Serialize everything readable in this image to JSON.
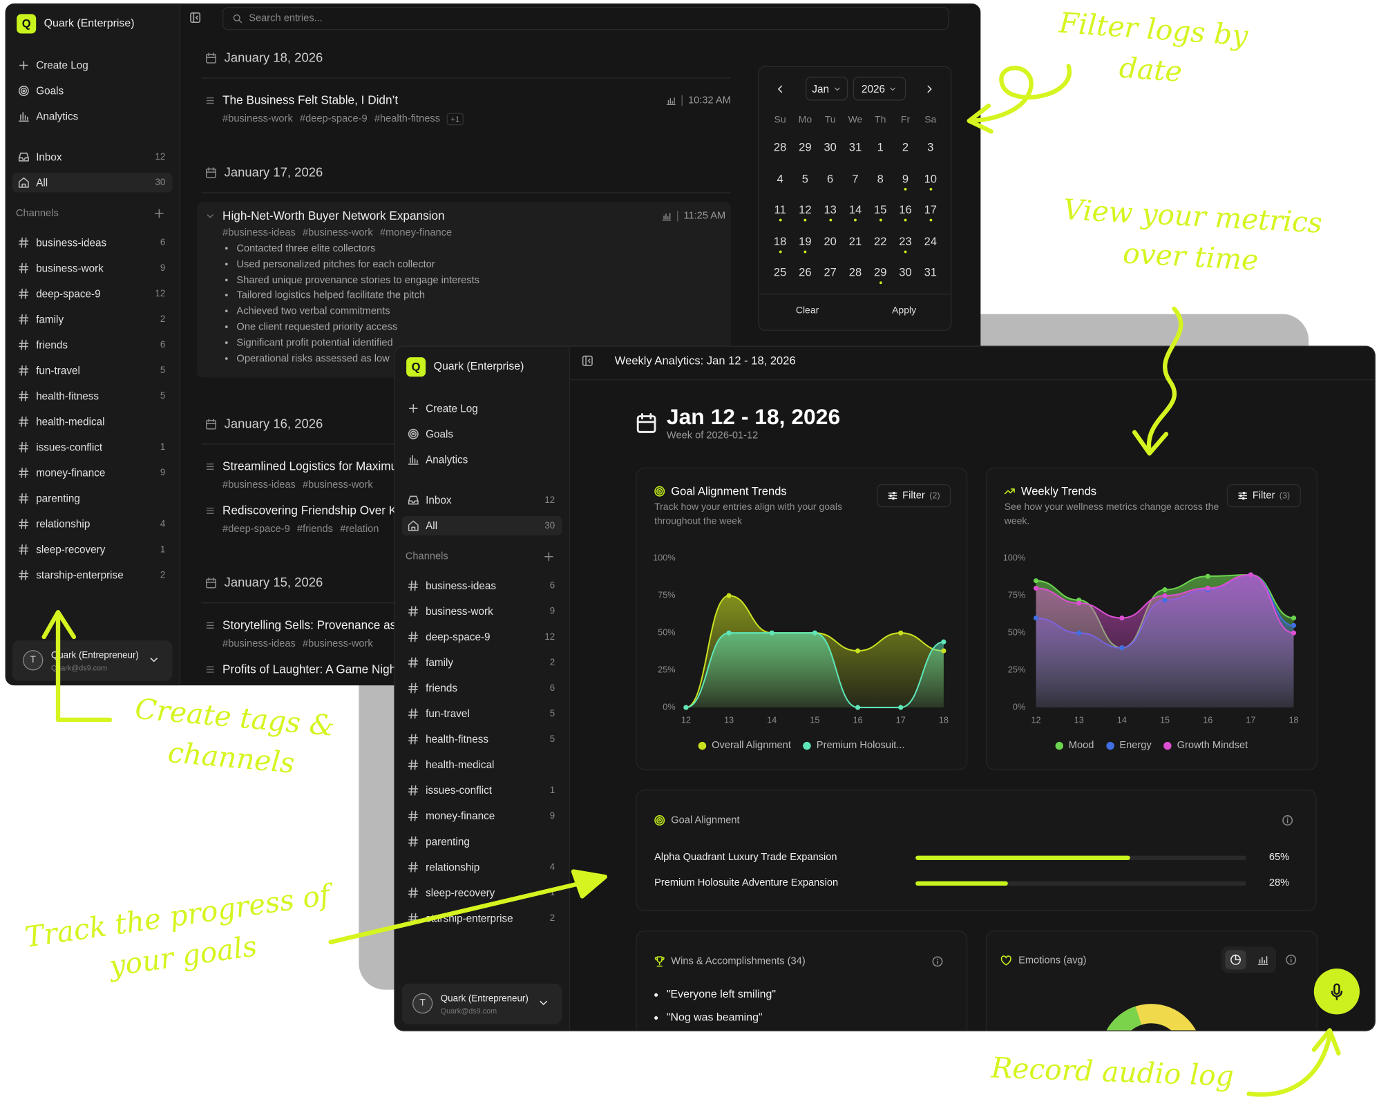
{
  "sidebar": {
    "logo": "Q",
    "workspace": "Quark (Enterprise)",
    "nav": [
      "Create Log",
      "Goals",
      "Analytics"
    ],
    "inbox": {
      "label": "Inbox",
      "count": 12
    },
    "all": {
      "label": "All",
      "count": 30
    },
    "channels_heading": "Channels",
    "channels": [
      {
        "name": "business-ideas",
        "count": 6
      },
      {
        "name": "business-work",
        "count": 9
      },
      {
        "name": "deep-space-9",
        "count": 12
      },
      {
        "name": "family",
        "count": 2
      },
      {
        "name": "friends",
        "count": 6
      },
      {
        "name": "fun-travel",
        "count": 5
      },
      {
        "name": "health-fitness",
        "count": 5
      },
      {
        "name": "health-medical",
        "count": null
      },
      {
        "name": "issues-conflict",
        "count": 1
      },
      {
        "name": "money-finance",
        "count": 9
      },
      {
        "name": "parenting",
        "count": null
      },
      {
        "name": "relationship",
        "count": 4
      },
      {
        "name": "sleep-recovery",
        "count": 1
      },
      {
        "name": "starship-enterprise",
        "count": 2
      }
    ],
    "user": {
      "initial": "T",
      "name": "Quark (Entrepreneur)",
      "email": "Quark@ds9.com"
    }
  },
  "log_window": {
    "search_placeholder": "Search entries...",
    "days": [
      {
        "date": "January 18, 2026",
        "entries": [
          {
            "title": "The Business Felt Stable, I Didn’t",
            "time": "10:32 AM",
            "tags": [
              "#business-work",
              "#deep-space-9",
              "#health-fitness"
            ],
            "more_tags": "+1"
          }
        ]
      },
      {
        "date": "January 17, 2026",
        "entries": [
          {
            "title": "High-Net-Worth Buyer Network Expansion",
            "time": "11:25 AM",
            "tags": [
              "#business-ideas",
              "#business-work",
              "#money-finance"
            ],
            "bullets": [
              "Contacted three elite collectors",
              "Used personalized pitches for each collector",
              "Shared unique provenance stories to engage interests",
              "Tailored logistics helped facilitate the pitch",
              "Achieved two verbal commitments",
              "One client requested priority access",
              "Significant profit potential identified",
              "Operational risks assessed as low"
            ]
          }
        ]
      },
      {
        "date": "January 16, 2026",
        "entries": [
          {
            "title": "Streamlined Logistics for Maximu",
            "tags": [
              "#business-ideas",
              "#business-work"
            ]
          },
          {
            "title": "Rediscovering Friendship Over K",
            "tags": [
              "#deep-space-9",
              "#friends",
              "#relation"
            ]
          }
        ]
      },
      {
        "date": "January 15, 2026",
        "entries": [
          {
            "title": "Storytelling Sells: Provenance as",
            "tags": [
              "#business-ideas",
              "#business-work"
            ]
          },
          {
            "title": "Profits of Laughter: A Game Nigh",
            "tags": []
          }
        ]
      }
    ],
    "calendar": {
      "month": "Jan",
      "year": "2026",
      "weekdays": [
        "Su",
        "Mo",
        "Tu",
        "We",
        "Th",
        "Fr",
        "Sa"
      ],
      "weeks": [
        [
          28,
          29,
          30,
          31,
          1,
          2,
          3
        ],
        [
          4,
          5,
          6,
          7,
          8,
          9,
          10
        ],
        [
          11,
          12,
          13,
          14,
          15,
          16,
          17
        ],
        [
          18,
          19,
          20,
          21,
          22,
          23,
          24
        ],
        [
          25,
          26,
          27,
          28,
          29,
          30,
          31
        ]
      ],
      "days_with_entries": [
        9,
        10,
        11,
        12,
        13,
        14,
        15,
        16,
        17,
        18,
        19,
        23,
        29
      ],
      "clear": "Clear",
      "apply": "Apply"
    }
  },
  "analytics_window": {
    "header": "Weekly Analytics: Jan 12 - 18, 2026",
    "title": "Jan 12 - 18, 2026",
    "subtitle": "Week of 2026-01-12",
    "charts": [
      {
        "type": "area",
        "title": "Goal Alignment Trends",
        "description": "Track how your entries align with your goals throughout the week",
        "filter": "Filter",
        "filter_count": "(2)",
        "categories": [
          "12",
          "13",
          "14",
          "15",
          "16",
          "17",
          "18"
        ],
        "ylim": [
          0,
          100
        ],
        "yticks": [
          {
            "value": 0,
            "label": "0%"
          },
          {
            "value": 25,
            "label": "25%"
          },
          {
            "value": 50,
            "label": "50%"
          },
          {
            "value": 75,
            "label": "75%"
          },
          {
            "value": 100,
            "label": "100%"
          }
        ],
        "series": [
          {
            "name": "Overall Alignment",
            "color": "#c9e01f",
            "values": [
              0,
              75,
              50,
              50,
              38,
              50,
              38
            ]
          },
          {
            "name": "Premium Holosuit...",
            "color": "#5ee6b8",
            "values": [
              0,
              50,
              50,
              50,
              0,
              0,
              44
            ]
          }
        ]
      },
      {
        "type": "area",
        "title": "Weekly Trends",
        "description": "See how your wellness metrics change across the week.",
        "filter": "Filter",
        "filter_count": "(3)",
        "categories": [
          "12",
          "13",
          "14",
          "15",
          "16",
          "17",
          "18"
        ],
        "ylim": [
          0,
          100
        ],
        "yticks": [
          {
            "value": 0,
            "label": "0%"
          },
          {
            "value": 25,
            "label": "25%"
          },
          {
            "value": 50,
            "label": "50%"
          },
          {
            "value": 75,
            "label": "75%"
          },
          {
            "value": 100,
            "label": "100%"
          }
        ],
        "series": [
          {
            "name": "Mood",
            "color": "#6bd44f",
            "values": [
              85,
              72,
              40,
              79,
              88,
              89,
              60
            ]
          },
          {
            "name": "Energy",
            "color": "#3f6fe3",
            "values": [
              60,
              50,
              40,
              72,
              79,
              89,
              55
            ]
          },
          {
            "name": "Growth Mindset",
            "color": "#dc4fd3",
            "values": [
              80,
              70,
              60,
              75,
              80,
              89,
              50
            ]
          }
        ]
      }
    ],
    "goal_alignment": {
      "title": "Goal Alignment",
      "labels": [
        "Alpha Quadrant Luxury Trade Expansion",
        "Premium Holosuite Adventure Expansion"
      ],
      "values": [
        65,
        28
      ],
      "value_labels": [
        "65%",
        "28%"
      ],
      "xlim": [
        0,
        100
      ]
    },
    "wins": {
      "title": "Wins & Accomplishments (34)",
      "items": [
        "\"Everyone left smiling\"",
        "\"Nog was beaming\""
      ]
    },
    "emotions": {
      "title": "Emotions (avg)"
    }
  },
  "annotations": [
    "Filter logs by date",
    "View your metrics over time",
    "Create tags & channels",
    "Track the progress of your goals",
    "Record audio log"
  ]
}
